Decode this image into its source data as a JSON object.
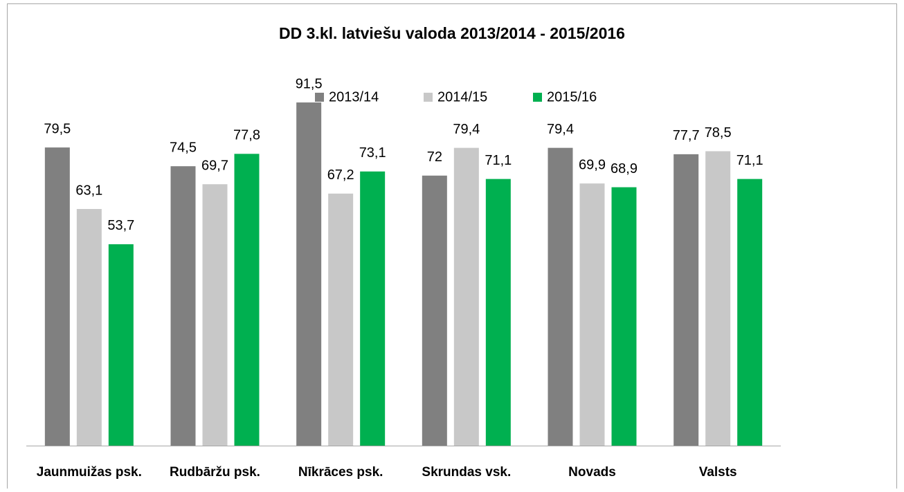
{
  "chart_data": {
    "type": "bar",
    "title": "DD 3.kl. latviešu valoda 2013/2014 - 2015/2016",
    "categories": [
      "Jaunmuižas psk.",
      "Rudbāržu psk.",
      "Nīkrāces psk.",
      "Skrundas vsk.",
      "Novads",
      "Valsts"
    ],
    "series": [
      {
        "name": "2013/14",
        "color": "#808080",
        "values": [
          79.5,
          74.5,
          91.5,
          72,
          79.4,
          77.7
        ],
        "value_labels": [
          "79,5",
          "74,5",
          "91,5",
          "72",
          "79,4",
          "77,7"
        ]
      },
      {
        "name": "2014/15",
        "color": "#c8c8c8",
        "values": [
          63.1,
          69.7,
          67.2,
          79.4,
          69.9,
          78.5
        ],
        "value_labels": [
          "63,1",
          "69,7",
          "67,2",
          "79,4",
          "69,9",
          "78,5"
        ]
      },
      {
        "name": "2015/16",
        "color": "#00b050",
        "values": [
          53.7,
          77.8,
          73.1,
          71.1,
          68.9,
          71.1
        ],
        "value_labels": [
          "53,7",
          "77,8",
          "73,1",
          "71,1",
          "68,9",
          "71,1"
        ]
      }
    ],
    "ylim": [
      0,
      100
    ],
    "legend": "top"
  }
}
